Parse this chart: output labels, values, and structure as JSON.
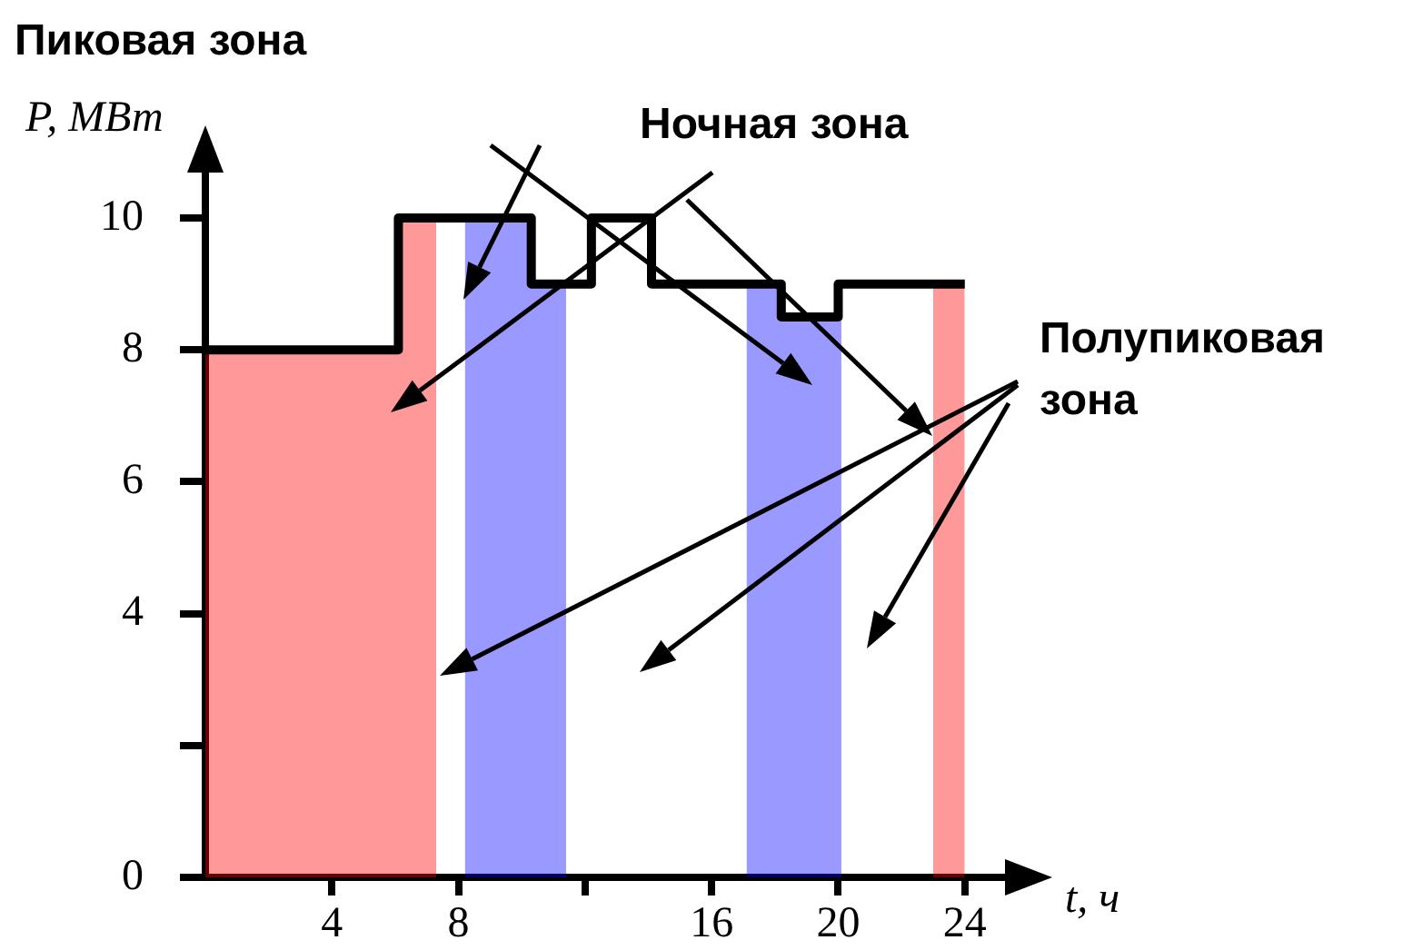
{
  "chart_data": {
    "type": "step",
    "xlabel": "t, ч",
    "ylabel": "P, МВт",
    "x": [
      0,
      6.1,
      10.3,
      12.2,
      14.1,
      18.2,
      20,
      24
    ],
    "series": [
      {
        "color": "#000000",
        "values": [
          8,
          10,
          9,
          10,
          9,
          8.5,
          9,
          9
        ]
      }
    ],
    "xlim": [
      0,
      25.5
    ],
    "xticks": [
      4,
      8,
      {
        "value": 12,
        "label": null
      },
      16,
      20,
      24
    ],
    "ylim": [
      0,
      10.8
    ],
    "yticks": [
      0,
      {
        "value": 2,
        "label": null
      },
      4,
      6,
      8,
      10
    ],
    "bands": [
      {
        "axis": "x",
        "from": 0,
        "to": 7.3,
        "color": "#ff0000"
      },
      {
        "axis": "x",
        "from": 8.2,
        "to": 11.4,
        "color": "#0000ff"
      },
      {
        "axis": "x",
        "from": 17.1,
        "to": 20.1,
        "color": "#0000ff"
      },
      {
        "axis": "x",
        "from": 23,
        "to": 24,
        "color": "#ff0000"
      }
    ],
    "annotations": [
      "Пиковая зона",
      "Ночная зона",
      "Полупиковая зона"
    ],
    "marker": "none",
    "line_style": "solid"
  }
}
